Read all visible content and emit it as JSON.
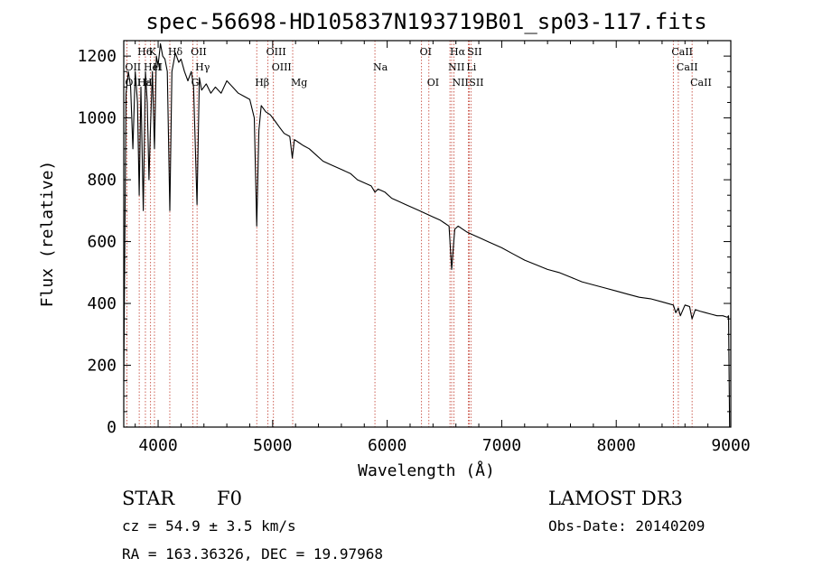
{
  "chart_data": {
    "type": "line",
    "title": "spec-56698-HD105837N193719B01_sp03-117.fits",
    "xlabel": "Wavelength (Å)",
    "ylabel": "Flux (relative)",
    "xlim": [
      3700,
      9000
    ],
    "ylim": [
      0,
      1250
    ],
    "xticks": [
      4000,
      5000,
      6000,
      7000,
      8000,
      9000
    ],
    "yticks": [
      0,
      200,
      400,
      600,
      800,
      1000,
      1200
    ],
    "series": [
      {
        "name": "spectrum",
        "x": [
          3700,
          3720,
          3740,
          3760,
          3780,
          3800,
          3820,
          3835,
          3850,
          3870,
          3889,
          3905,
          3920,
          3934,
          3950,
          3968,
          3985,
          4000,
          4020,
          4040,
          4060,
          4080,
          4102,
          4120,
          4150,
          4180,
          4200,
          4230,
          4260,
          4290,
          4310,
          4340,
          4360,
          4380,
          4420,
          4460,
          4500,
          4550,
          4600,
          4650,
          4700,
          4750,
          4800,
          4840,
          4861,
          4880,
          4900,
          4940,
          4980,
          5020,
          5060,
          5100,
          5150,
          5172,
          5190,
          5230,
          5270,
          5320,
          5380,
          5440,
          5500,
          5560,
          5620,
          5680,
          5740,
          5800,
          5860,
          5893,
          5920,
          5980,
          6040,
          6100,
          6160,
          6220,
          6280,
          6340,
          6400,
          6460,
          6500,
          6540,
          6563,
          6590,
          6620,
          6660,
          6700,
          6760,
          6820,
          6880,
          6940,
          7000,
          7100,
          7200,
          7300,
          7400,
          7500,
          7600,
          7700,
          7800,
          7900,
          8000,
          8100,
          8200,
          8300,
          8400,
          8498,
          8520,
          8542,
          8560,
          8600,
          8640,
          8662,
          8690,
          8730,
          8780,
          8830,
          8880,
          8930,
          8970,
          8980,
          8990
        ],
        "y": [
          150,
          1080,
          1150,
          1100,
          900,
          1150,
          1050,
          750,
          1100,
          700,
          1150,
          1050,
          800,
          980,
          1150,
          900,
          1200,
          1170,
          1240,
          1200,
          1190,
          1150,
          700,
          1150,
          1210,
          1180,
          1190,
          1150,
          1120,
          1150,
          1100,
          720,
          1130,
          1090,
          1110,
          1080,
          1100,
          1080,
          1120,
          1100,
          1080,
          1070,
          1060,
          1000,
          650,
          960,
          1040,
          1020,
          1010,
          990,
          970,
          950,
          940,
          870,
          930,
          920,
          910,
          900,
          880,
          860,
          850,
          840,
          830,
          820,
          800,
          790,
          780,
          760,
          770,
          760,
          740,
          730,
          720,
          710,
          700,
          690,
          680,
          670,
          660,
          650,
          510,
          640,
          650,
          640,
          630,
          620,
          610,
          600,
          590,
          580,
          560,
          540,
          525,
          510,
          500,
          485,
          470,
          460,
          450,
          440,
          430,
          420,
          415,
          405,
          395,
          370,
          385,
          360,
          395,
          390,
          350,
          380,
          375,
          370,
          365,
          360,
          360,
          355,
          360,
          0
        ]
      }
    ],
    "line_markers": [
      {
        "label": "H6",
        "wavelength": 3835,
        "row": 1
      },
      {
        "label": "K",
        "wavelength": 3934,
        "row": 1
      },
      {
        "label": "Hδ",
        "wavelength": 4102,
        "row": 1
      },
      {
        "label": "OII",
        "wavelength": 4300,
        "row": 1
      },
      {
        "label": "OIII",
        "wavelength": 4959,
        "row": 1
      },
      {
        "label": "OI",
        "wavelength": 6300,
        "row": 1
      },
      {
        "label": "Hα",
        "wavelength": 6563,
        "row": 1
      },
      {
        "label": "SII",
        "wavelength": 6716,
        "row": 1
      },
      {
        "label": "CaII",
        "wavelength": 8498,
        "row": 1
      },
      {
        "label": "OII",
        "wavelength": 3727,
        "row": 2
      },
      {
        "label": "He",
        "wavelength": 3889,
        "row": 2
      },
      {
        "label": "H",
        "wavelength": 3968,
        "row": 2
      },
      {
        "label": "I",
        "wavelength": 4020,
        "row": 2
      },
      {
        "label": "Hγ",
        "wavelength": 4340,
        "row": 2
      },
      {
        "label": "OIII",
        "wavelength": 5007,
        "row": 2
      },
      {
        "label": "Na",
        "wavelength": 5893,
        "row": 2
      },
      {
        "label": "NII",
        "wavelength": 6548,
        "row": 2
      },
      {
        "label": "Li",
        "wavelength": 6708,
        "row": 2
      },
      {
        "label": "CaII",
        "wavelength": 8542,
        "row": 2
      },
      {
        "label": "OII",
        "wavelength": 3727,
        "row": 3
      },
      {
        "label": "Ha",
        "wavelength": 3835,
        "row": 3
      },
      {
        "label": "H",
        "wavelength": 3889,
        "row": 3
      },
      {
        "label": "G",
        "wavelength": 4304,
        "row": 3
      },
      {
        "label": "Hβ",
        "wavelength": 4861,
        "row": 3
      },
      {
        "label": "Mg",
        "wavelength": 5175,
        "row": 3
      },
      {
        "label": "OI",
        "wavelength": 6364,
        "row": 3
      },
      {
        "label": "NII",
        "wavelength": 6583,
        "row": 3
      },
      {
        "label": "SII",
        "wavelength": 6731,
        "row": 3
      },
      {
        "label": "CaII",
        "wavelength": 8662,
        "row": 3
      }
    ],
    "line_wavelengths": [
      3727,
      3835,
      3889,
      3934,
      3968,
      4102,
      4304,
      4340,
      4861,
      4959,
      5007,
      5175,
      5893,
      6300,
      6364,
      6548,
      6563,
      6583,
      6708,
      6716,
      6731,
      8498,
      8542,
      8662
    ]
  },
  "footer": {
    "class_label": "STAR",
    "subclass": "F0",
    "survey": "LAMOST DR3",
    "cz": "cz = 54.9 ± 3.5 km/s",
    "obs_date": "Obs-Date: 20140209",
    "coords": "RA = 163.36326, DEC =  19.97968"
  }
}
